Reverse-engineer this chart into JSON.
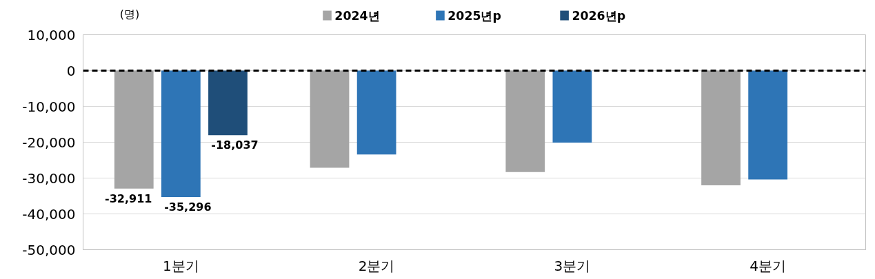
{
  "chart_data": {
    "type": "bar",
    "ylabel": "(명)",
    "categories": [
      "1분기",
      "2분기",
      "3분기",
      "4분기"
    ],
    "series": [
      {
        "name": "2024년",
        "color": "#a5a5a5",
        "values": [
          -32911,
          -27100,
          -28300,
          -32000
        ],
        "value_labels": [
          "-32,911",
          null,
          null,
          null
        ]
      },
      {
        "name": "2025년p",
        "color": "#2e75b6",
        "values": [
          -35296,
          -23400,
          -20100,
          -30400
        ],
        "value_labels": [
          "-35,296",
          null,
          null,
          null
        ]
      },
      {
        "name": "2026년p",
        "color": "#1f4e79",
        "values": [
          -18037,
          null,
          null,
          null
        ],
        "value_labels": [
          "-18,037",
          null,
          null,
          null
        ]
      }
    ],
    "ylim": [
      -50000,
      10000
    ],
    "yticks": [
      {
        "value": 10000,
        "label": "10,000"
      },
      {
        "value": 0,
        "label": "0"
      },
      {
        "value": -10000,
        "label": "-10,000"
      },
      {
        "value": -20000,
        "label": "-20,000"
      },
      {
        "value": -30000,
        "label": "-30,000"
      },
      {
        "value": -40000,
        "label": "-40,000"
      },
      {
        "value": -50000,
        "label": "-50,000"
      }
    ],
    "grid": "y",
    "legend": "top",
    "ref_lines": [
      {
        "axis": "y",
        "value": 0,
        "label": null,
        "color": "#000000",
        "line_style": "dashed"
      }
    ]
  }
}
